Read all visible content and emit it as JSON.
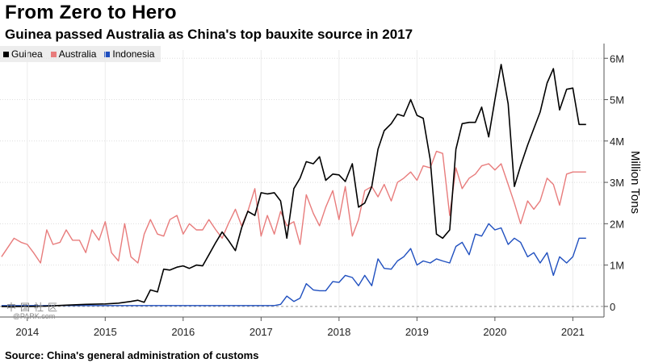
{
  "header": {
    "title": "From Zero to Hero",
    "subtitle": "Guinea passed Australia as China's top bauxite source in 2017"
  },
  "footer": {
    "source": "Source: China's general administration of customs"
  },
  "watermark": {
    "logo": "中国社区",
    "text": "@PARK.com"
  },
  "colors": {
    "guinea": "#000000",
    "australia": "#e87c7c",
    "indonesia": "#1f4fbf",
    "grid": "#dedede",
    "axis": "#555555"
  },
  "chart_data": {
    "type": "line",
    "title": "From Zero to Hero",
    "subtitle": "Guinea passed Australia as China's top bauxite source in 2017",
    "ylabel": "Million Tons",
    "ylim": [
      -0.1,
      6.2
    ],
    "yticks": [
      0,
      1,
      2,
      3,
      4,
      5,
      6
    ],
    "ytick_labels": [
      "0",
      "1M",
      "2M",
      "3M",
      "4M",
      "5M",
      "6M"
    ],
    "xlim": [
      2013.65,
      2021.4
    ],
    "xticks": [
      2014,
      2015,
      2016,
      2017,
      2018,
      2019,
      2020,
      2021
    ],
    "xtick_labels": [
      "2014",
      "2015",
      "2016",
      "2017",
      "2018",
      "2019",
      "2020",
      "2021"
    ],
    "grid": true,
    "legend": "top-left",
    "series": [
      {
        "name": "Guinea",
        "color": "#000000",
        "x": [
          2013.67,
          2014.0,
          2014.25,
          2014.5,
          2014.75,
          2015.0,
          2015.17,
          2015.33,
          2015.42,
          2015.5,
          2015.58,
          2015.67,
          2015.75,
          2015.83,
          2015.92,
          2016.0,
          2016.08,
          2016.17,
          2016.25,
          2016.33,
          2016.42,
          2016.5,
          2016.58,
          2016.67,
          2016.75,
          2016.83,
          2016.92,
          2017.0,
          2017.08,
          2017.17,
          2017.25,
          2017.33,
          2017.42,
          2017.5,
          2017.58,
          2017.67,
          2017.75,
          2017.83,
          2017.92,
          2018.0,
          2018.08,
          2018.17,
          2018.25,
          2018.33,
          2018.42,
          2018.5,
          2018.58,
          2018.67,
          2018.75,
          2018.83,
          2018.92,
          2019.0,
          2019.08,
          2019.17,
          2019.25,
          2019.33,
          2019.42,
          2019.5,
          2019.58,
          2019.67,
          2019.75,
          2019.83,
          2019.92,
          2020.0,
          2020.08,
          2020.17,
          2020.25,
          2020.33,
          2020.42,
          2020.5,
          2020.58,
          2020.67,
          2020.75,
          2020.83,
          2020.92,
          2021.0,
          2021.08,
          2021.17
        ],
        "values": [
          0.0,
          0.0,
          0.01,
          0.03,
          0.05,
          0.06,
          0.08,
          0.12,
          0.15,
          0.1,
          0.4,
          0.35,
          0.9,
          0.88,
          0.95,
          0.98,
          0.92,
          1.0,
          0.98,
          1.25,
          1.55,
          1.8,
          1.6,
          1.35,
          1.9,
          2.3,
          2.2,
          2.75,
          2.72,
          2.75,
          2.55,
          1.65,
          2.85,
          3.1,
          3.5,
          3.45,
          3.62,
          3.05,
          3.2,
          3.18,
          3.02,
          3.45,
          2.4,
          2.5,
          2.9,
          3.8,
          4.25,
          4.42,
          4.65,
          4.6,
          5.0,
          4.62,
          4.55,
          3.55,
          1.75,
          1.65,
          1.85,
          3.8,
          4.42,
          4.45,
          4.45,
          4.82,
          4.1,
          5.0,
          5.85,
          4.9,
          2.9,
          3.4,
          3.9,
          4.3,
          4.7,
          5.4,
          5.75,
          4.75,
          5.25,
          5.28,
          4.4,
          4.4
        ],
        "values_note": ""
      },
      {
        "name": "Australia",
        "color": "#e87c7c",
        "x": [
          2013.67,
          2013.83,
          2013.92,
          2014.0,
          2014.08,
          2014.17,
          2014.25,
          2014.33,
          2014.42,
          2014.5,
          2014.58,
          2014.67,
          2014.75,
          2014.83,
          2014.92,
          2015.0,
          2015.08,
          2015.17,
          2015.25,
          2015.33,
          2015.42,
          2015.5,
          2015.58,
          2015.67,
          2015.75,
          2015.83,
          2015.92,
          2016.0,
          2016.08,
          2016.17,
          2016.25,
          2016.33,
          2016.42,
          2016.5,
          2016.58,
          2016.67,
          2016.75,
          2016.83,
          2016.92,
          2017.0,
          2017.08,
          2017.17,
          2017.25,
          2017.33,
          2017.42,
          2017.5,
          2017.58,
          2017.67,
          2017.75,
          2017.83,
          2017.92,
          2018.0,
          2018.08,
          2018.17,
          2018.25,
          2018.33,
          2018.42,
          2018.5,
          2018.58,
          2018.67,
          2018.75,
          2018.83,
          2018.92,
          2019.0,
          2019.08,
          2019.17,
          2019.25,
          2019.33,
          2019.42,
          2019.5,
          2019.58,
          2019.67,
          2019.75,
          2019.83,
          2019.92,
          2020.0,
          2020.08,
          2020.17,
          2020.25,
          2020.33,
          2020.42,
          2020.5,
          2020.58,
          2020.67,
          2020.75,
          2020.83,
          2020.92,
          2021.0,
          2021.08,
          2021.17
        ],
        "values": [
          1.2,
          1.65,
          1.55,
          1.5,
          1.3,
          1.05,
          1.85,
          1.5,
          1.55,
          1.85,
          1.6,
          1.6,
          1.3,
          1.85,
          1.6,
          2.05,
          1.3,
          1.1,
          2.0,
          1.2,
          1.05,
          1.75,
          2.1,
          1.75,
          1.7,
          2.1,
          2.2,
          1.75,
          2.0,
          1.85,
          1.85,
          2.1,
          1.85,
          1.65,
          2.0,
          2.35,
          1.95,
          2.3,
          2.85,
          1.7,
          2.2,
          1.75,
          2.3,
          1.95,
          2.05,
          1.5,
          2.7,
          2.25,
          1.95,
          2.4,
          2.8,
          2.1,
          2.9,
          1.7,
          2.1,
          2.8,
          2.9,
          2.65,
          2.95,
          2.55,
          3.0,
          3.1,
          3.25,
          3.05,
          3.4,
          3.35,
          3.75,
          3.7,
          2.2,
          3.35,
          2.85,
          3.1,
          3.2,
          3.4,
          3.45,
          3.3,
          3.45,
          2.95,
          2.5,
          2.0,
          2.55,
          2.35,
          2.55,
          3.1,
          2.95,
          2.45,
          3.2,
          3.25,
          3.25,
          3.25
        ],
        "values_note": ""
      },
      {
        "name": "Indonesia",
        "color": "#1f4fbf",
        "x": [
          2013.67,
          2014.5,
          2015.0,
          2015.5,
          2016.0,
          2016.5,
          2017.0,
          2017.17,
          2017.25,
          2017.33,
          2017.42,
          2017.5,
          2017.58,
          2017.67,
          2017.75,
          2017.83,
          2017.92,
          2018.0,
          2018.08,
          2018.17,
          2018.25,
          2018.33,
          2018.42,
          2018.5,
          2018.58,
          2018.67,
          2018.75,
          2018.83,
          2018.92,
          2019.0,
          2019.08,
          2019.17,
          2019.25,
          2019.33,
          2019.42,
          2019.5,
          2019.58,
          2019.67,
          2019.75,
          2019.83,
          2019.92,
          2020.0,
          2020.08,
          2020.17,
          2020.25,
          2020.33,
          2020.42,
          2020.5,
          2020.58,
          2020.67,
          2020.75,
          2020.83,
          2020.92,
          2021.0,
          2021.08,
          2021.17
        ],
        "values": [
          0.02,
          0.02,
          0.02,
          0.02,
          0.02,
          0.02,
          0.02,
          0.02,
          0.05,
          0.25,
          0.12,
          0.2,
          0.55,
          0.4,
          0.38,
          0.38,
          0.6,
          0.58,
          0.75,
          0.7,
          0.5,
          0.75,
          0.5,
          1.15,
          0.92,
          0.9,
          1.1,
          1.2,
          1.4,
          1.0,
          1.1,
          1.05,
          1.15,
          1.1,
          1.05,
          1.45,
          1.55,
          1.25,
          1.75,
          1.7,
          2.0,
          1.85,
          1.9,
          1.5,
          1.65,
          1.55,
          1.2,
          1.3,
          1.05,
          1.3,
          0.75,
          1.2,
          1.05,
          1.2,
          1.65,
          1.65
        ],
        "values_note": ""
      }
    ]
  }
}
